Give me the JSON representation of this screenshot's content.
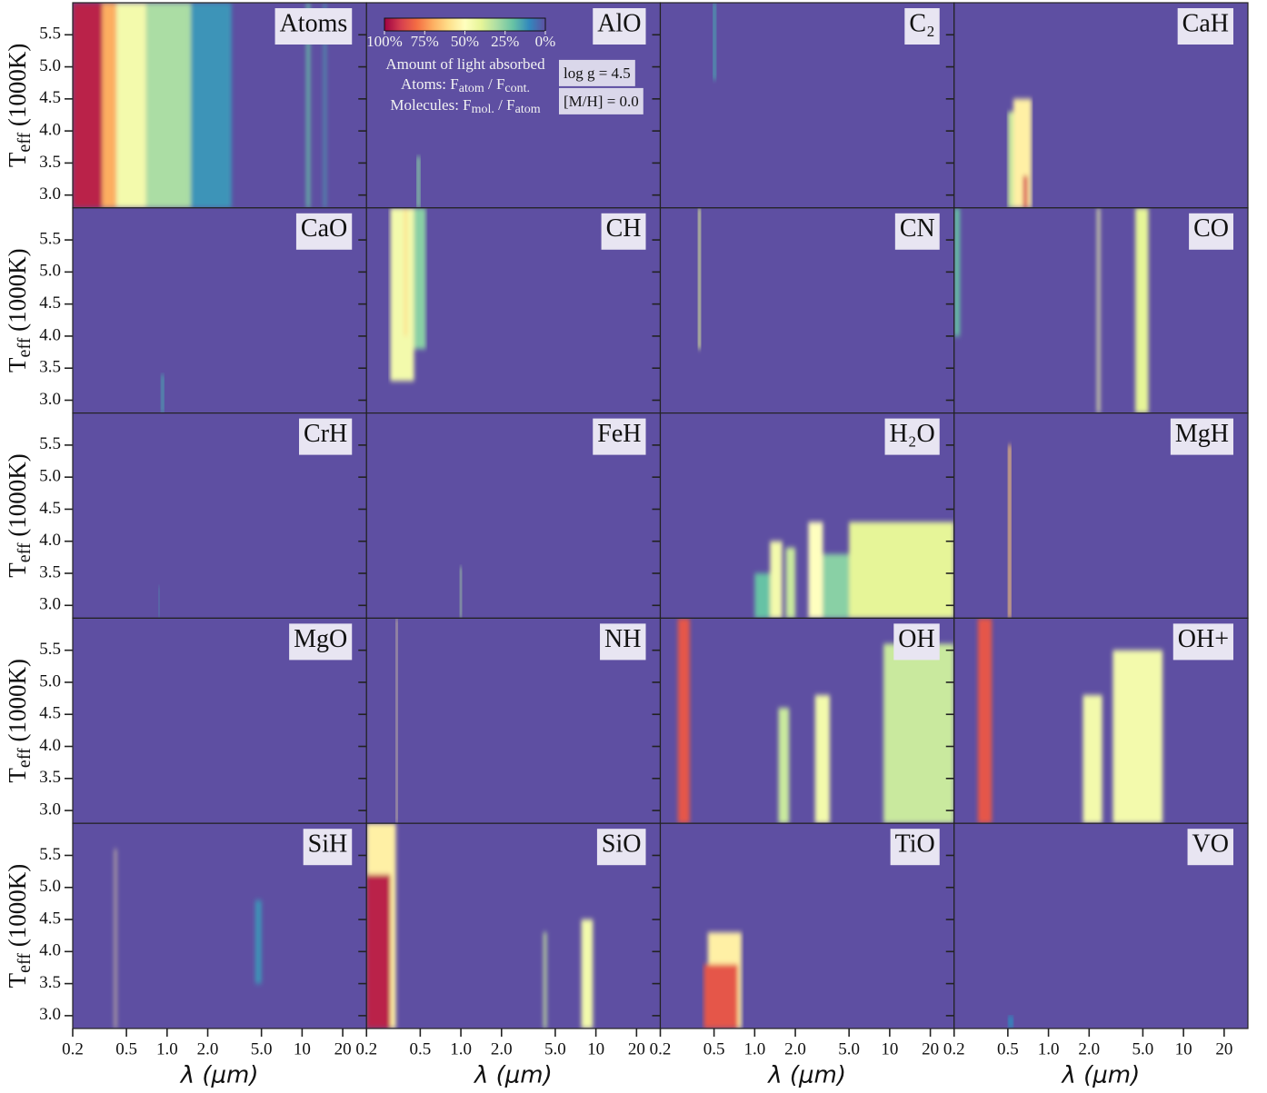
{
  "chart_data": {
    "type": "heatmap",
    "xlabel": "λ (μm)",
    "ylabel": [
      {
        "text": "T"
      },
      {
        "sub": "eff"
      },
      {
        "text": " (1000K)"
      }
    ],
    "log_x": true,
    "xlim": [
      0.2,
      30
    ],
    "xticks": [
      {
        "value": 0.2,
        "label": "0.2"
      },
      {
        "value": 0.5,
        "label": "0.5"
      },
      {
        "value": 1,
        "label": "1.0"
      },
      {
        "value": 2,
        "label": "2.0"
      },
      {
        "value": 5,
        "label": "5.0"
      },
      10,
      20
    ],
    "ylim": [
      2.8,
      6.0
    ],
    "yticks": [
      {
        "value": 3,
        "label": "3.0"
      },
      {
        "value": 3.5,
        "label": "3.5"
      },
      {
        "value": 4,
        "label": "4.0"
      },
      {
        "value": 4.5,
        "label": "4.5"
      },
      {
        "value": 5,
        "label": "5.0"
      },
      {
        "value": 5.5,
        "label": "5.5"
      }
    ],
    "colormap": [
      "#5e4fa2",
      "#3288bd",
      "#66c2a5",
      "#abdda4",
      "#e6f598",
      "#ffffbf",
      "#fee08b",
      "#fdae61",
      "#f46d43",
      "#d53e4f",
      "#9e0142"
    ],
    "clim": [
      0,
      100
    ],
    "colorbar_ticks": [
      {
        "value": 100,
        "label": "100%"
      },
      {
        "value": 75,
        "label": "75%"
      },
      {
        "value": 50,
        "label": "50%"
      },
      {
        "value": 25,
        "label": "25%"
      },
      {
        "value": 0,
        "label": "0%"
      }
    ],
    "colorbar_title": "Amount of light absorbed",
    "colorbar_lines": [
      [
        {
          "text": "Atoms: F"
        },
        {
          "sub": "atom"
        },
        {
          "text": " / F"
        },
        {
          "sub": "cont."
        }
      ],
      [
        {
          "text": "Molecules: F"
        },
        {
          "sub": "mol."
        },
        {
          "text": "  / F"
        },
        {
          "sub": "atom"
        }
      ]
    ],
    "annotations": [
      "log g = 4.5",
      "[M/H] = 0.0"
    ],
    "panels": [
      {
        "title": "Atoms",
        "bands": [
          {
            "x": [
              1.5,
              3
            ],
            "y": [
              2.8,
              6.0
            ],
            "value": 12
          },
          {
            "x": [
              0.7,
              1.5
            ],
            "y": [
              2.8,
              6.0
            ],
            "value": 30
          },
          {
            "x": [
              0.42,
              0.7
            ],
            "y": [
              2.8,
              6.0
            ],
            "value": 45
          },
          {
            "x": [
              0.33,
              0.42
            ],
            "y": [
              2.8,
              6.0
            ],
            "value": 70
          },
          {
            "x": [
              0.2,
              0.33
            ],
            "y": [
              2.8,
              6.0
            ],
            "value": 95
          },
          {
            "x": [
              10.8,
              11.4
            ],
            "y": [
              2.8,
              6.0
            ],
            "value": 20
          },
          {
            "x": [
              14.5,
              15
            ],
            "y": [
              2.8,
              6.0
            ],
            "value": 15
          }
        ]
      },
      {
        "title": "AlO",
        "bands": [
          {
            "x": [
              0.47,
              0.5
            ],
            "y": [
              2.8,
              3.6
            ],
            "value": 25
          }
        ]
      },
      {
        "title": "C₂",
        "bands": [
          {
            "x": [
              0.49,
              0.52
            ],
            "y": [
              4.8,
              6.0
            ],
            "value": 15
          }
        ]
      },
      {
        "title": "CaH",
        "bands": [
          {
            "x": [
              0.5,
              0.55
            ],
            "y": [
              2.8,
              4.3
            ],
            "value": 35
          },
          {
            "x": [
              0.55,
              0.75
            ],
            "y": [
              2.8,
              4.5
            ],
            "value": 55
          },
          {
            "x": [
              0.65,
              0.7
            ],
            "y": [
              2.8,
              3.3
            ],
            "value": 90
          }
        ]
      },
      {
        "title": "CaO",
        "bands": [
          {
            "x": [
              0.9,
              0.95
            ],
            "y": [
              2.8,
              3.4
            ],
            "value": 15
          }
        ]
      },
      {
        "title": "CH",
        "bands": [
          {
            "x": [
              0.45,
              0.55
            ],
            "y": [
              3.8,
              6.0
            ],
            "value": 25
          },
          {
            "x": [
              0.3,
              0.45
            ],
            "y": [
              3.3,
              6.0
            ],
            "value": 45
          },
          {
            "x": [
              0.38,
              0.4
            ],
            "y": [
              4.0,
              6.0
            ],
            "value": 60
          }
        ]
      },
      {
        "title": "CN",
        "bands": [
          {
            "x": [
              0.38,
              0.4
            ],
            "y": [
              3.8,
              6.0
            ],
            "value": 40
          }
        ]
      },
      {
        "title": "CO",
        "bands": [
          {
            "x": [
              0.2,
              0.22
            ],
            "y": [
              4.0,
              6.0
            ],
            "value": 20
          },
          {
            "x": [
              2.3,
              2.4
            ],
            "y": [
              2.8,
              6.0
            ],
            "value": 45
          },
          {
            "x": [
              4.4,
              5.5
            ],
            "y": [
              2.8,
              6.0
            ],
            "value": 40
          }
        ]
      },
      {
        "title": "CrH",
        "bands": [
          {
            "x": [
              0.86,
              0.88
            ],
            "y": [
              2.8,
              3.3
            ],
            "value": 15
          }
        ]
      },
      {
        "title": "FeH",
        "bands": [
          {
            "x": [
              0.98,
              1.02
            ],
            "y": [
              2.8,
              3.6
            ],
            "value": 30
          }
        ]
      },
      {
        "title": "H₂O",
        "bands": [
          {
            "x": [
              1.0,
              1.3
            ],
            "y": [
              2.8,
              3.5
            ],
            "value": 20
          },
          {
            "x": [
              1.3,
              1.6
            ],
            "y": [
              2.8,
              4.0
            ],
            "value": 45
          },
          {
            "x": [
              1.7,
              2.0
            ],
            "y": [
              2.8,
              3.9
            ],
            "value": 35
          },
          {
            "x": [
              2.5,
              3.2
            ],
            "y": [
              2.8,
              4.3
            ],
            "value": 50
          },
          {
            "x": [
              3.2,
              5
            ],
            "y": [
              2.8,
              3.8
            ],
            "value": 25
          },
          {
            "x": [
              5,
              30
            ],
            "y": [
              2.8,
              4.3
            ],
            "value": 40
          }
        ]
      },
      {
        "title": "MgH",
        "bands": [
          {
            "x": [
              0.5,
              0.53
            ],
            "y": [
              2.8,
              5.5
            ],
            "value": 65
          }
        ]
      },
      {
        "title": "MgO",
        "bands": []
      },
      {
        "title": "NH",
        "bands": [
          {
            "x": [
              0.33,
              0.34
            ],
            "y": [
              2.8,
              6.0
            ],
            "value": 55
          }
        ]
      },
      {
        "title": "OH",
        "bands": [
          {
            "x": [
              0.27,
              0.33
            ],
            "y": [
              2.8,
              6.0
            ],
            "value": 85
          },
          {
            "x": [
              1.5,
              1.8
            ],
            "y": [
              2.8,
              4.6
            ],
            "value": 35
          },
          {
            "x": [
              2.8,
              3.6
            ],
            "y": [
              2.8,
              4.8
            ],
            "value": 45
          },
          {
            "x": [
              9,
              30
            ],
            "y": [
              2.8,
              5.6
            ],
            "value": 35
          }
        ]
      },
      {
        "title": "OH+",
        "bands": [
          {
            "x": [
              0.3,
              0.38
            ],
            "y": [
              2.8,
              6.0
            ],
            "value": 85
          },
          {
            "x": [
              1.8,
              2.5
            ],
            "y": [
              2.8,
              4.8
            ],
            "value": 45
          },
          {
            "x": [
              3,
              7
            ],
            "y": [
              2.8,
              5.5
            ],
            "value": 45
          }
        ]
      },
      {
        "title": "SiH",
        "bands": [
          {
            "x": [
              0.41,
              0.42
            ],
            "y": [
              2.8,
              5.6
            ],
            "value": 55
          },
          {
            "x": [
              4.5,
              5
            ],
            "y": [
              3.5,
              4.8
            ],
            "value": 12
          }
        ]
      },
      {
        "title": "SiO",
        "bands": [
          {
            "x": [
              0.2,
              0.33
            ],
            "y": [
              2.8,
              6.0
            ],
            "value": 55
          },
          {
            "x": [
              0.2,
              0.3
            ],
            "y": [
              2.8,
              5.2
            ],
            "value": 95
          },
          {
            "x": [
              4.1,
              4.3
            ],
            "y": [
              2.8,
              4.3
            ],
            "value": 35
          },
          {
            "x": [
              7.8,
              9.5
            ],
            "y": [
              2.8,
              4.5
            ],
            "value": 45
          }
        ]
      },
      {
        "title": "TiO",
        "bands": [
          {
            "x": [
              0.45,
              0.8
            ],
            "y": [
              2.8,
              4.3
            ],
            "value": 55
          },
          {
            "x": [
              0.42,
              0.75
            ],
            "y": [
              2.8,
              3.8
            ],
            "value": 85
          }
        ]
      },
      {
        "title": "VO",
        "bands": [
          {
            "x": [
              0.5,
              0.55
            ],
            "y": [
              2.8,
              3.0
            ],
            "value": 10
          }
        ]
      }
    ]
  }
}
